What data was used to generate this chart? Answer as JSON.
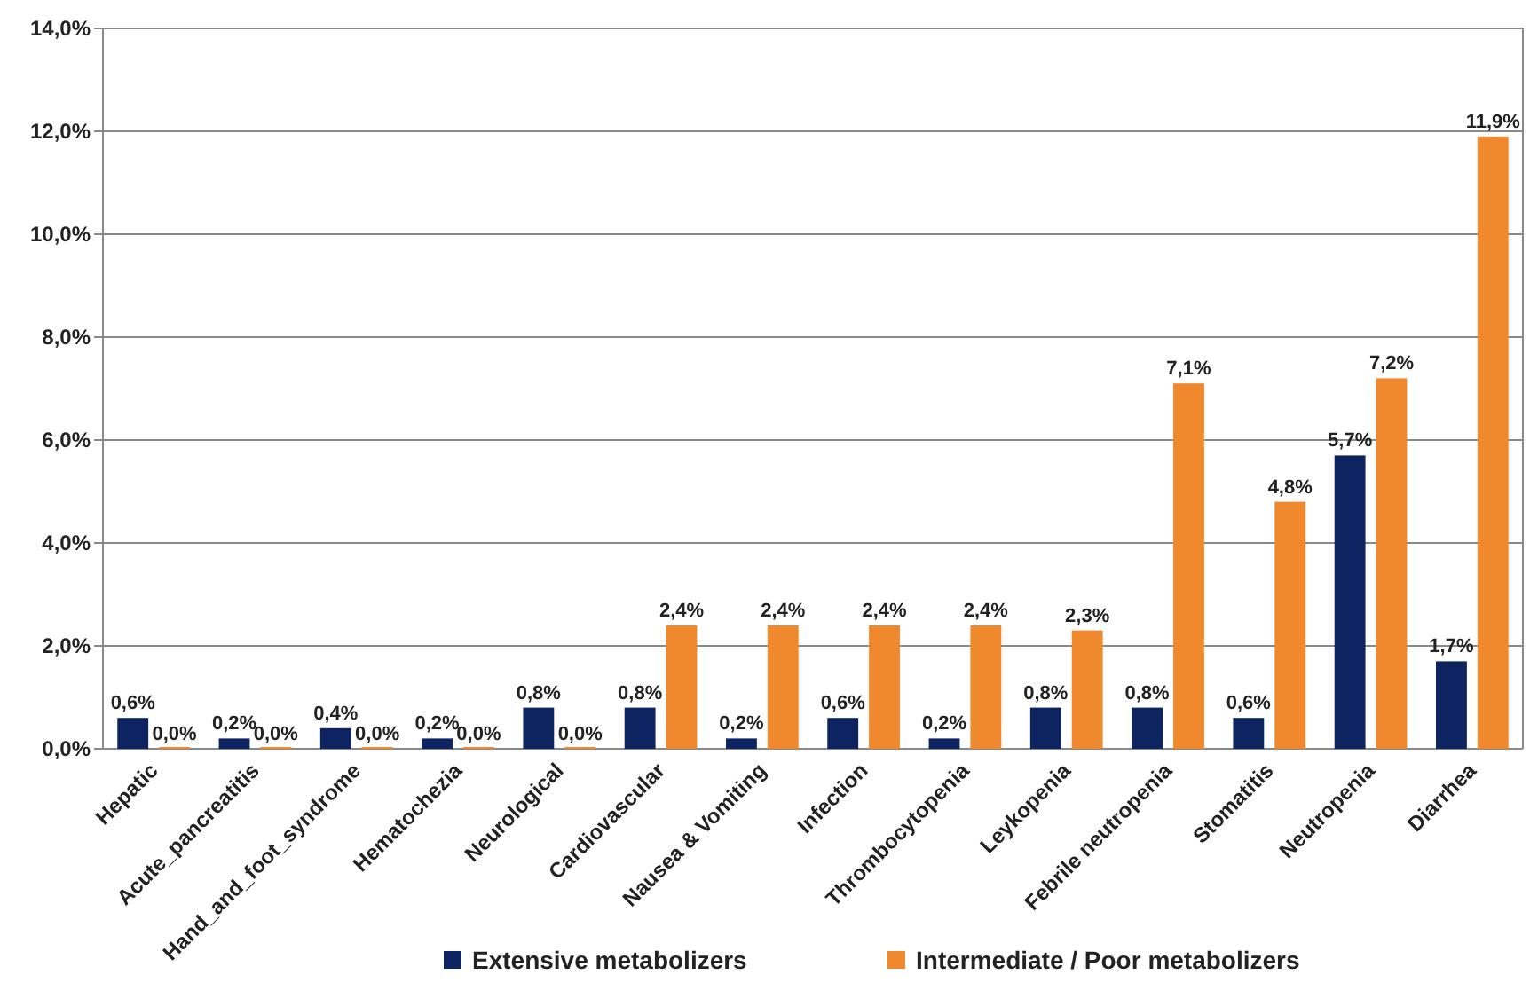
{
  "chart_data": {
    "type": "bar",
    "categories": [
      "Hepatic",
      "Acute_pancreatitis",
      "Hand_and_foot_syndrome",
      "Hematochezia",
      "Neurological",
      "Cardiovascular",
      "Nausea & Vomiting",
      "Infection",
      "Thrombocytopenia",
      "Leykopenia",
      "Febrile neutropenia",
      "Stomatitis",
      "Neutropenia",
      "Diarrhea"
    ],
    "series": [
      {
        "name": "Extensive metabolizers",
        "color": "#0d2461",
        "values": [
          0.6,
          0.2,
          0.4,
          0.2,
          0.8,
          0.8,
          0.2,
          0.6,
          0.2,
          0.8,
          0.8,
          0.6,
          5.7,
          1.7
        ],
        "value_labels": [
          "0,6%",
          "0,2%",
          "0,4%",
          "0,2%",
          "0,8%",
          "0,8%",
          "0,2%",
          "0,6%",
          "0,2%",
          "0,8%",
          "0,8%",
          "0,6%",
          "5,7%",
          "1,7%"
        ]
      },
      {
        "name": "Intermediate / Poor metabolizers",
        "color": "#f0882e",
        "values": [
          0,
          0,
          0,
          0,
          0,
          2.4,
          2.4,
          2.4,
          2.4,
          2.3,
          7.1,
          4.8,
          7.2,
          11.9
        ],
        "value_labels": [
          "0,0%",
          "0,0%",
          "0,0%",
          "0,0%",
          "0,0%",
          "2,4%",
          "2,4%",
          "2,4%",
          "2,4%",
          "2,3%",
          "7,1%",
          "4,8%",
          "7,2%",
          "11,9%"
        ]
      }
    ],
    "ylim": [
      0,
      14
    ],
    "yticks": [
      {
        "value": 0,
        "label": "0,0%"
      },
      {
        "value": 2,
        "label": "2,0%"
      },
      {
        "value": 4,
        "label": "4,0%"
      },
      {
        "value": 6,
        "label": "6,0%"
      },
      {
        "value": 8,
        "label": "8,0%"
      },
      {
        "value": 10,
        "label": "10,0%"
      },
      {
        "value": 12,
        "label": "12,0%"
      },
      {
        "value": 14,
        "label": "14,0%"
      }
    ],
    "grid": "y",
    "legend": "bottom"
  }
}
